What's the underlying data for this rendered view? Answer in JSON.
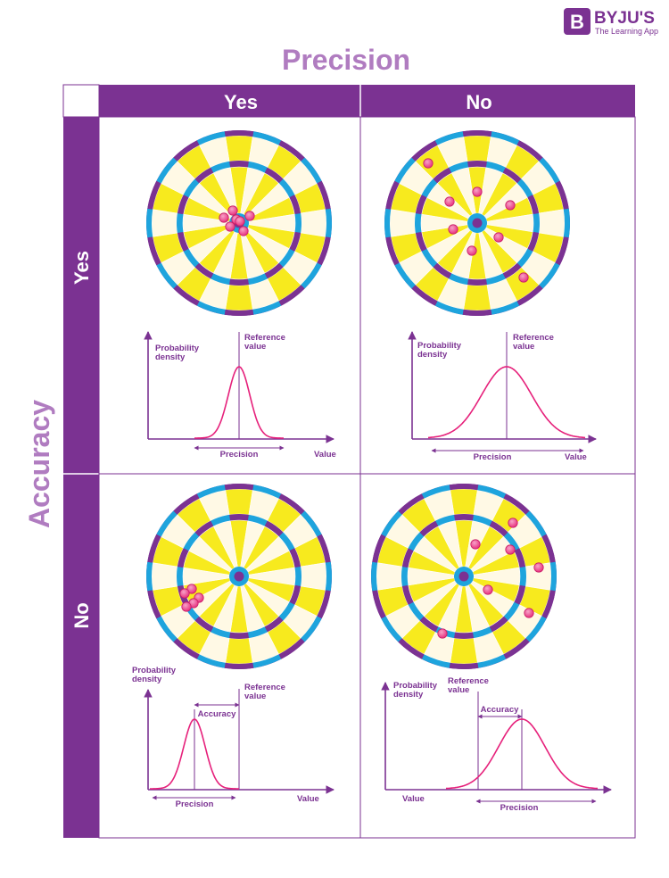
{
  "brand": {
    "name": "BYJU'S",
    "tagline": "The Learning App",
    "logo_letter": "B"
  },
  "titles": {
    "top": "Precision",
    "left": "Accuracy"
  },
  "columns": [
    {
      "label": "Yes"
    },
    {
      "label": "No"
    }
  ],
  "rows": [
    {
      "label": "Yes"
    },
    {
      "label": "No"
    }
  ],
  "plot_labels": {
    "probability_density": [
      "Probability",
      "density"
    ],
    "reference_value": [
      "Reference",
      "value"
    ],
    "precision": "Precision",
    "accuracy": "Accuracy",
    "value": "Value"
  },
  "colors": {
    "purple": "#7b3292",
    "title_purple": "#b07cc0",
    "yellow": "#f7ea1e",
    "cream": "#fff9e5",
    "blue": "#1ea4dd",
    "curve": "#e6217b",
    "dart": "#e8317e"
  },
  "cells": [
    {
      "name": "accurate-precise",
      "accuracy": "Yes",
      "precision": "Yes",
      "darts_hit": 7,
      "spread": "tight",
      "centered_on_reference": true
    },
    {
      "name": "accurate-imprecise",
      "accuracy": "Yes",
      "precision": "No",
      "darts_hit": 8,
      "spread": "wide",
      "centered_on_reference": true
    },
    {
      "name": "inaccurate-precise",
      "accuracy": "No",
      "precision": "Yes",
      "darts_hit": 5,
      "spread": "tight",
      "centered_on_reference": false
    },
    {
      "name": "inaccurate-imprecise",
      "accuracy": "No",
      "precision": "No",
      "darts_hit": 7,
      "spread": "wide",
      "centered_on_reference": false
    }
  ]
}
